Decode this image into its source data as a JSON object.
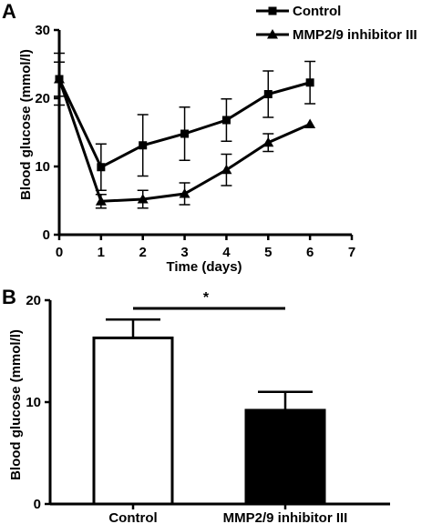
{
  "chart_data": [
    {
      "panel": "A",
      "type": "line",
      "xlabel": "Time (days)",
      "ylabel": "Blood glucose (mmol/l)",
      "xlim": [
        0,
        7
      ],
      "ylim": [
        0,
        30
      ],
      "xticks": [
        0,
        1,
        2,
        3,
        4,
        5,
        6,
        7
      ],
      "yticks": [
        0,
        10,
        20,
        30
      ],
      "grid": false,
      "legend": "top-right",
      "series": [
        {
          "name": "Control",
          "marker": "square",
          "x": [
            0,
            1,
            2,
            3,
            4,
            5,
            6
          ],
          "values": [
            22.8,
            9.9,
            13.1,
            14.8,
            16.8,
            20.6,
            22.3
          ],
          "errors": [
            3.8,
            3.4,
            4.5,
            3.9,
            3.1,
            3.4,
            3.1
          ]
        },
        {
          "name": "MMP2/9 inhibitor III",
          "marker": "triangle",
          "x": [
            0,
            1,
            2,
            3,
            4,
            5,
            6
          ],
          "values": [
            22.8,
            4.9,
            5.2,
            6.0,
            9.5,
            13.5,
            16.2
          ],
          "errors": [
            2.5,
            1.0,
            1.3,
            1.6,
            2.3,
            1.3,
            0.0
          ]
        }
      ]
    },
    {
      "panel": "B",
      "type": "bar",
      "ylabel": "Blood glucose (mmol/l)",
      "categories": [
        "Control",
        "MMP2/9 inhibitor III"
      ],
      "values": [
        16.3,
        9.2
      ],
      "errors": [
        1.8,
        1.8
      ],
      "bar_fill": [
        "#ffffff",
        "#000000"
      ],
      "ylim": [
        0,
        20
      ],
      "yticks": [
        0,
        10,
        20
      ],
      "significance": "*"
    }
  ]
}
